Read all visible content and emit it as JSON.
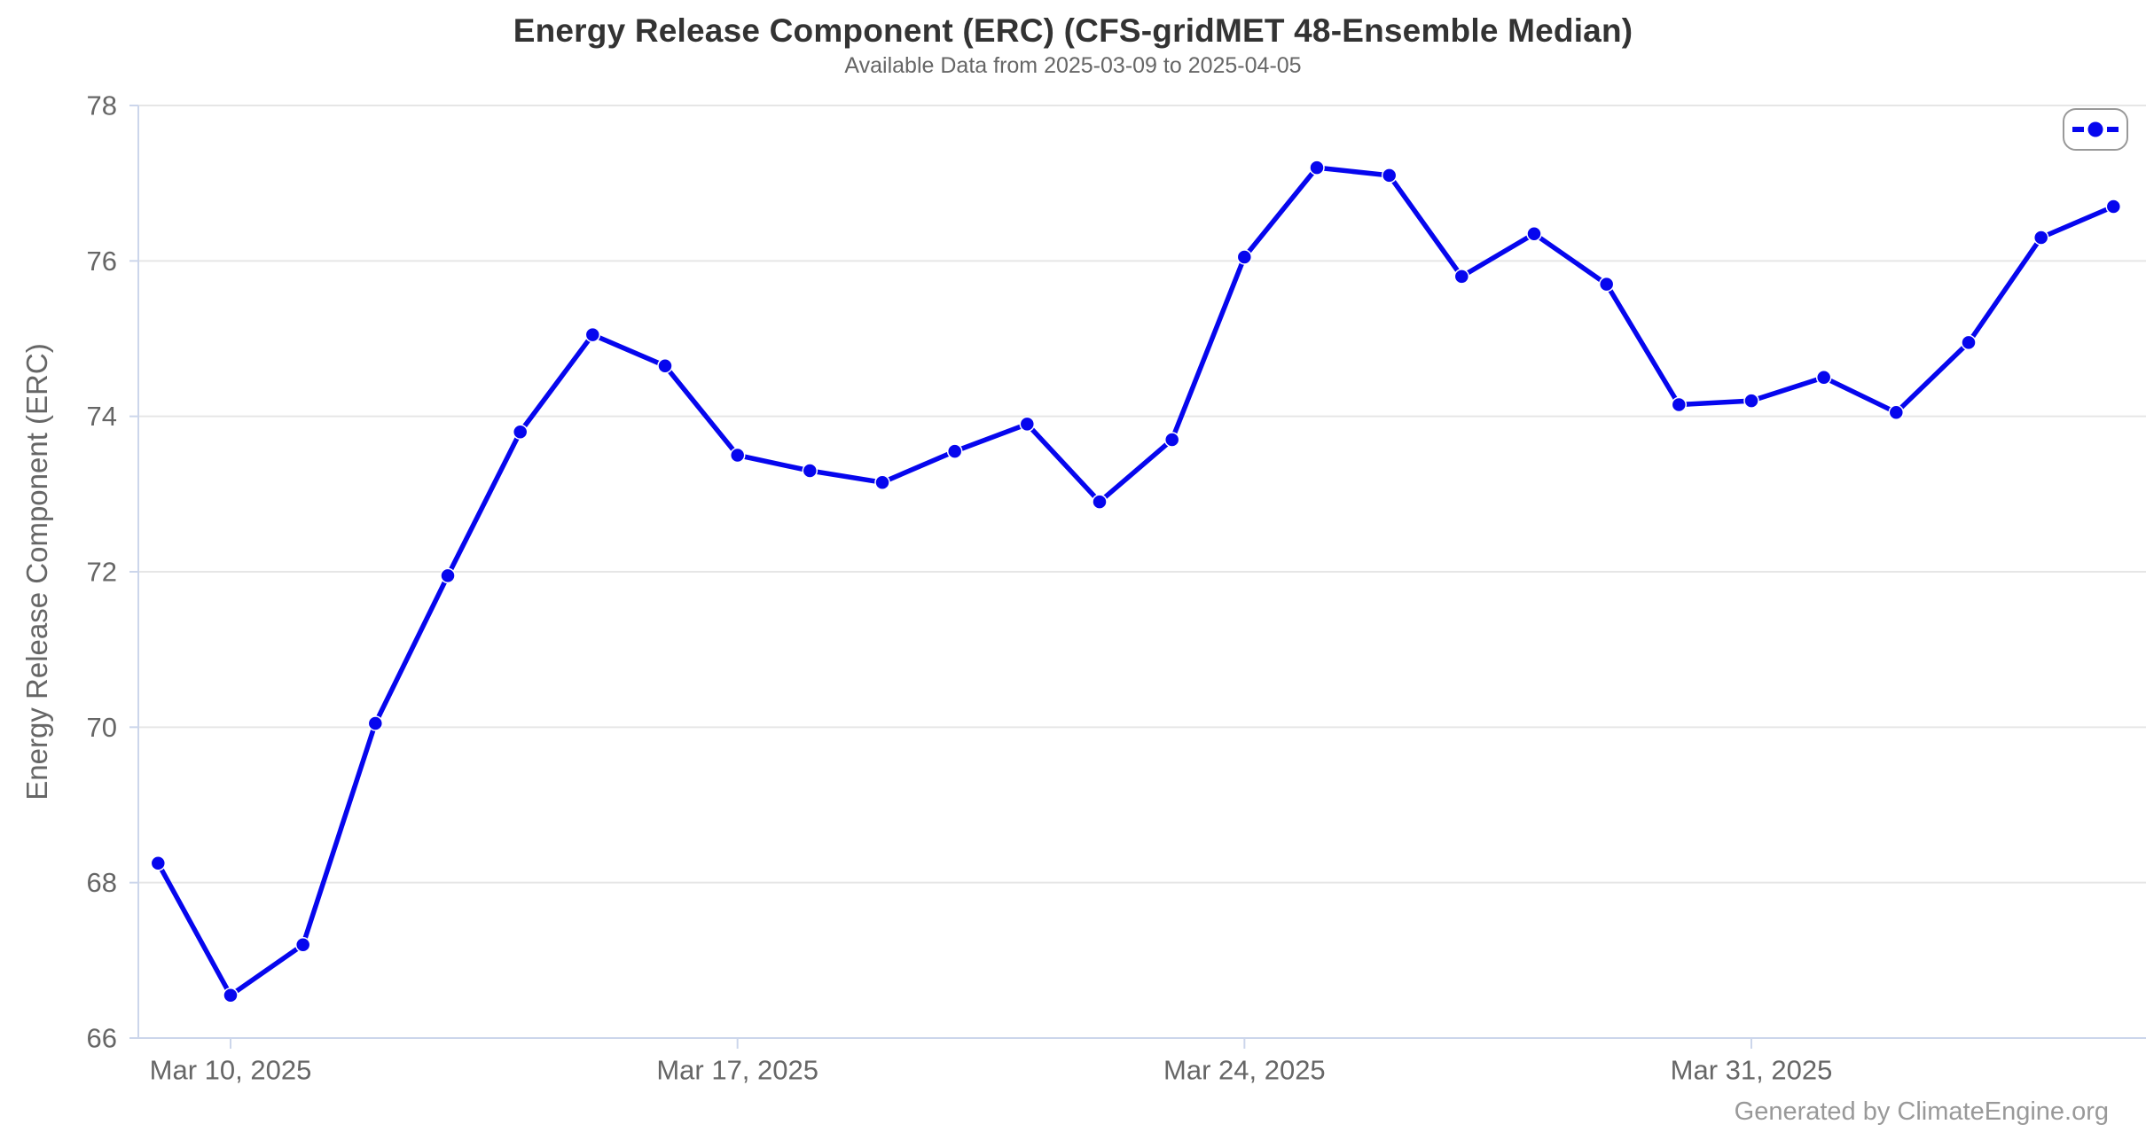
{
  "chart_data": {
    "type": "line",
    "title": "Energy Release Component (ERC) (CFS-gridMET 48-Ensemble Median)",
    "subtitle": "Available Data from 2025-03-09 to 2025-04-05",
    "ylabel": "Energy Release Component (ERC)",
    "xlabel": "",
    "ylim": [
      66,
      78
    ],
    "yticks": [
      66,
      68,
      70,
      72,
      74,
      76,
      78
    ],
    "xticks": [
      {
        "index": 1,
        "label": "Mar 10, 2025"
      },
      {
        "index": 8,
        "label": "Mar 17, 2025"
      },
      {
        "index": 15,
        "label": "Mar 24, 2025"
      },
      {
        "index": 22,
        "label": "Mar 31, 2025"
      }
    ],
    "grid": "horizontal-only",
    "legend_position": "top-right",
    "series": [
      {
        "marker": "circle",
        "dates": [
          "2025-03-09",
          "2025-03-10",
          "2025-03-11",
          "2025-03-12",
          "2025-03-13",
          "2025-03-14",
          "2025-03-15",
          "2025-03-16",
          "2025-03-17",
          "2025-03-18",
          "2025-03-19",
          "2025-03-20",
          "2025-03-21",
          "2025-03-22",
          "2025-03-23",
          "2025-03-24",
          "2025-03-25",
          "2025-03-26",
          "2025-03-27",
          "2025-03-28",
          "2025-03-29",
          "2025-03-30",
          "2025-03-31",
          "2025-04-01",
          "2025-04-02",
          "2025-04-03",
          "2025-04-04",
          "2025-04-05"
        ],
        "values": [
          68.25,
          66.55,
          67.2,
          70.05,
          71.95,
          73.8,
          75.05,
          74.65,
          73.5,
          73.3,
          73.15,
          73.55,
          73.9,
          72.9,
          73.7,
          76.05,
          77.2,
          77.1,
          75.8,
          76.35,
          75.7,
          74.15,
          74.2,
          74.5,
          74.05,
          74.95,
          76.3,
          76.7
        ]
      }
    ]
  },
  "footer": {
    "attribution": "Generated by ClimateEngine.org"
  },
  "colors": {
    "series_line": "#0606ee",
    "marker_fill": "#0606ee",
    "marker_ring": "#ffffff",
    "grid_line": "#e6e6e6",
    "axis_line": "#ccd6eb",
    "tick_label": "#666666",
    "chart_title": "#333333",
    "subtitle_text": "#666666",
    "axis_title": "#666666",
    "attribution_text": "#999999",
    "legend_border": "#999999",
    "background": "#ffffff"
  }
}
